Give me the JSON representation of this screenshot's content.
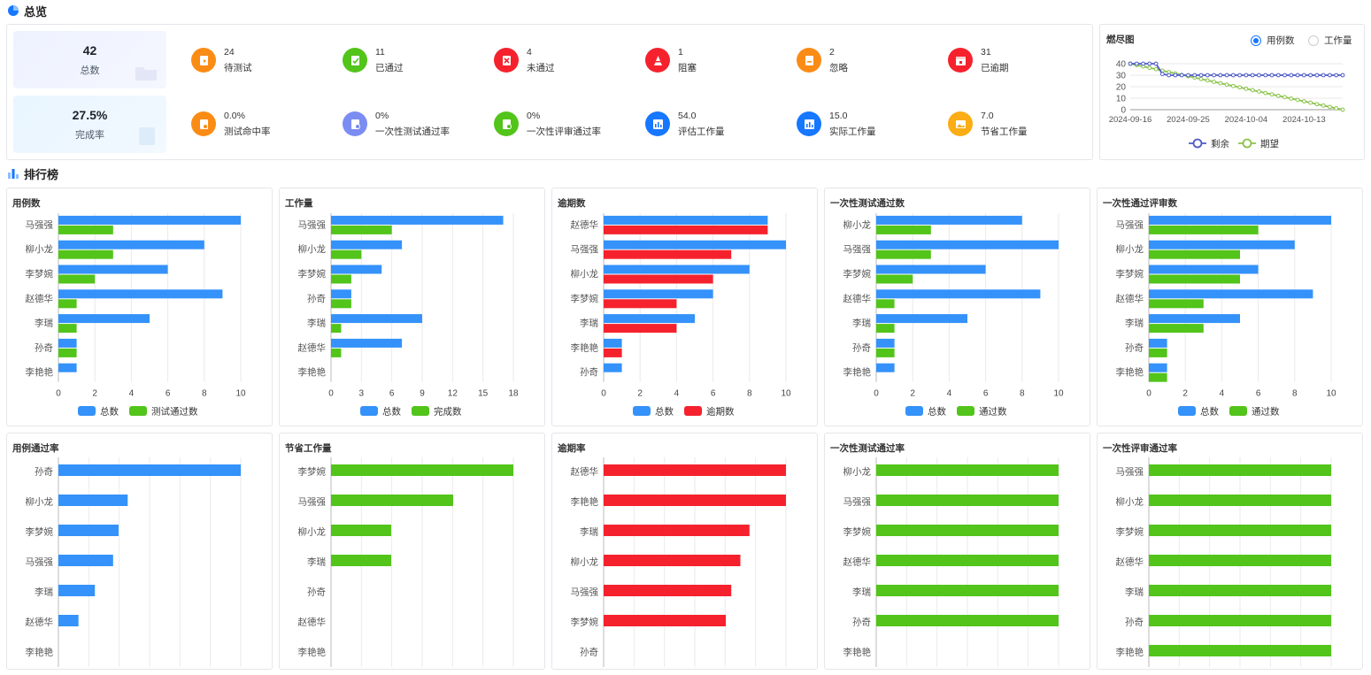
{
  "overview": {
    "title": "总览",
    "total": {
      "value": "42",
      "label": "总数"
    },
    "completion": {
      "value": "27.5%",
      "label": "完成率"
    },
    "stats": [
      {
        "value": "24",
        "label": "待测试",
        "color": "#fa8c16",
        "icon": "play-doc-icon"
      },
      {
        "value": "11",
        "label": "已通过",
        "color": "#52c41a",
        "icon": "check-doc-icon"
      },
      {
        "value": "4",
        "label": "未通过",
        "color": "#f5222d",
        "icon": "x-doc-icon"
      },
      {
        "value": "1",
        "label": "阻塞",
        "color": "#f5222d",
        "icon": "cone-icon"
      },
      {
        "value": "2",
        "label": "忽略",
        "color": "#fa8c16",
        "icon": "minus-doc-icon"
      },
      {
        "value": "31",
        "label": "已逾期",
        "color": "#f5222d",
        "icon": "calendar-icon"
      },
      {
        "value": "0.0%",
        "label": "测试命中率",
        "color": "#fa8c16",
        "icon": "target-doc-icon"
      },
      {
        "value": "0%",
        "label": "一次性测试通过率",
        "color": "#7b8cf2",
        "icon": "rate-doc-icon"
      },
      {
        "value": "0%",
        "label": "一次性评审通过率",
        "color": "#52c41a",
        "icon": "review-doc-icon"
      },
      {
        "value": "54.0",
        "label": "评估工作量",
        "color": "#1677ff",
        "icon": "bar-chart-icon"
      },
      {
        "value": "15.0",
        "label": "实际工作量",
        "color": "#1677ff",
        "icon": "bar-chart-icon"
      },
      {
        "value": "7.0",
        "label": "节省工作量",
        "color": "#faad14",
        "icon": "image-icon"
      }
    ]
  },
  "burndown": {
    "title": "燃尽图",
    "radio_options": [
      "用例数",
      "工作量"
    ],
    "selected": "用例数",
    "chart_data": {
      "type": "line",
      "x_ticks": [
        "2024-09-16",
        "2024-09-25",
        "2024-10-04",
        "2024-10-13"
      ],
      "y_ticks": [
        0,
        10,
        20,
        30,
        40
      ],
      "ylim": [
        0,
        40
      ],
      "series": [
        {
          "name": "剩余",
          "color": "#4e5bc6",
          "values": [
            40,
            40,
            40,
            40,
            40,
            31,
            30,
            30,
            30,
            30,
            30,
            30,
            30,
            30,
            30,
            30,
            30,
            30,
            30,
            30,
            30,
            30,
            30,
            30,
            30,
            30,
            30,
            30,
            30,
            30,
            30,
            30,
            30,
            30
          ]
        },
        {
          "name": "期望",
          "color": "#8bc34a",
          "values": [
            40,
            38.8,
            37.6,
            36.4,
            35.2,
            33.9,
            32.7,
            31.5,
            30.3,
            29.1,
            27.9,
            26.7,
            25.5,
            24.2,
            23,
            21.8,
            20.6,
            19.4,
            18.2,
            17,
            15.8,
            14.5,
            13.3,
            12.1,
            10.9,
            9.7,
            8.5,
            7.3,
            6.1,
            4.8,
            3.6,
            2.4,
            1.2,
            0
          ]
        }
      ]
    }
  },
  "ranking": {
    "title": "排行榜",
    "charts": [
      {
        "title": "用例数",
        "type": "bar-horizontal",
        "categories": [
          "马强强",
          "柳小龙",
          "李梦婉",
          "赵德华",
          "李瑞",
          "孙奇",
          "李艳艳"
        ],
        "xticks": [
          0,
          2,
          4,
          6,
          8,
          10
        ],
        "xmax": 10,
        "series": [
          {
            "name": "总数",
            "color": "#3492fa",
            "values": [
              10,
              8,
              6,
              9,
              5,
              1,
              1
            ]
          },
          {
            "name": "测试通过数",
            "color": "#52c41a",
            "values": [
              3,
              3,
              2,
              1,
              1,
              1,
              0
            ]
          }
        ]
      },
      {
        "title": "工作量",
        "type": "bar-horizontal",
        "categories": [
          "马强强",
          "柳小龙",
          "李梦婉",
          "孙奇",
          "李瑞",
          "赵德华",
          "李艳艳"
        ],
        "xticks": [
          0,
          3,
          6,
          9,
          12,
          15,
          18
        ],
        "xmax": 18,
        "series": [
          {
            "name": "总数",
            "color": "#3492fa",
            "values": [
              17,
              7,
              5,
              2,
              9,
              7,
              0
            ]
          },
          {
            "name": "完成数",
            "color": "#52c41a",
            "values": [
              6,
              3,
              2,
              2,
              1,
              1,
              0
            ]
          }
        ]
      },
      {
        "title": "逾期数",
        "type": "bar-horizontal",
        "categories": [
          "赵德华",
          "马强强",
          "柳小龙",
          "李梦婉",
          "李瑞",
          "李艳艳",
          "孙奇"
        ],
        "xticks": [
          0,
          2,
          4,
          6,
          8,
          10
        ],
        "xmax": 10,
        "series": [
          {
            "name": "总数",
            "color": "#3492fa",
            "values": [
              9,
              10,
              8,
              6,
              5,
              1,
              1
            ]
          },
          {
            "name": "逾期数",
            "color": "#f5222d",
            "values": [
              9,
              7,
              6,
              4,
              4,
              1,
              0
            ]
          }
        ]
      },
      {
        "title": "一次性测试通过数",
        "type": "bar-horizontal",
        "categories": [
          "柳小龙",
          "马强强",
          "李梦婉",
          "赵德华",
          "李瑞",
          "孙奇",
          "李艳艳"
        ],
        "xticks": [
          0,
          2,
          4,
          6,
          8,
          10
        ],
        "xmax": 10,
        "series": [
          {
            "name": "总数",
            "color": "#3492fa",
            "values": [
              8,
              10,
              6,
              9,
              5,
              1,
              1
            ]
          },
          {
            "name": "通过数",
            "color": "#52c41a",
            "values": [
              3,
              3,
              2,
              1,
              1,
              1,
              0
            ]
          }
        ]
      },
      {
        "title": "一次性通过评审数",
        "type": "bar-horizontal",
        "categories": [
          "马强强",
          "柳小龙",
          "李梦婉",
          "赵德华",
          "李瑞",
          "孙奇",
          "李艳艳"
        ],
        "xticks": [
          0,
          2,
          4,
          6,
          8,
          10
        ],
        "xmax": 10,
        "series": [
          {
            "name": "总数",
            "color": "#3492fa",
            "values": [
              10,
              8,
              6,
              9,
              5,
              1,
              1
            ]
          },
          {
            "name": "通过数",
            "color": "#52c41a",
            "values": [
              6,
              5,
              5,
              3,
              3,
              1,
              1
            ]
          }
        ]
      },
      {
        "title": "用例通过率",
        "type": "bar-horizontal",
        "categories": [
          "孙奇",
          "柳小龙",
          "李梦婉",
          "马强强",
          "李瑞",
          "赵德华",
          "李艳艳"
        ],
        "xmax": 1,
        "series": [
          {
            "name": "",
            "color": "#3492fa",
            "values": [
              1.0,
              0.38,
              0.33,
              0.3,
              0.2,
              0.11,
              0
            ]
          }
        ]
      },
      {
        "title": "节省工作量",
        "type": "bar-horizontal",
        "categories": [
          "李梦婉",
          "马强强",
          "柳小龙",
          "李瑞",
          "孙奇",
          "赵德华",
          "李艳艳"
        ],
        "xmax": 1,
        "series": [
          {
            "name": "",
            "color": "#52c41a",
            "values": [
              1.0,
              0.67,
              0.33,
              0.33,
              0,
              0,
              0
            ]
          }
        ]
      },
      {
        "title": "逾期率",
        "type": "bar-horizontal",
        "categories": [
          "赵德华",
          "李艳艳",
          "李瑞",
          "柳小龙",
          "马强强",
          "李梦婉",
          "孙奇"
        ],
        "xmax": 1,
        "series": [
          {
            "name": "",
            "color": "#f5222d",
            "values": [
              1.0,
              1.0,
              0.8,
              0.75,
              0.7,
              0.67,
              0
            ]
          }
        ]
      },
      {
        "title": "一次性测试通过率",
        "type": "bar-horizontal",
        "categories": [
          "柳小龙",
          "马强强",
          "李梦婉",
          "赵德华",
          "李瑞",
          "孙奇",
          "李艳艳"
        ],
        "xmax": 1,
        "series": [
          {
            "name": "",
            "color": "#52c41a",
            "values": [
              1,
              1,
              1,
              1,
              1,
              1,
              0
            ]
          }
        ]
      },
      {
        "title": "一次性评审通过率",
        "type": "bar-horizontal",
        "categories": [
          "马强强",
          "柳小龙",
          "李梦婉",
          "赵德华",
          "李瑞",
          "孙奇",
          "李艳艳"
        ],
        "xmax": 1,
        "series": [
          {
            "name": "",
            "color": "#52c41a",
            "values": [
              1,
              1,
              1,
              1,
              1,
              1,
              1
            ]
          }
        ]
      }
    ]
  }
}
